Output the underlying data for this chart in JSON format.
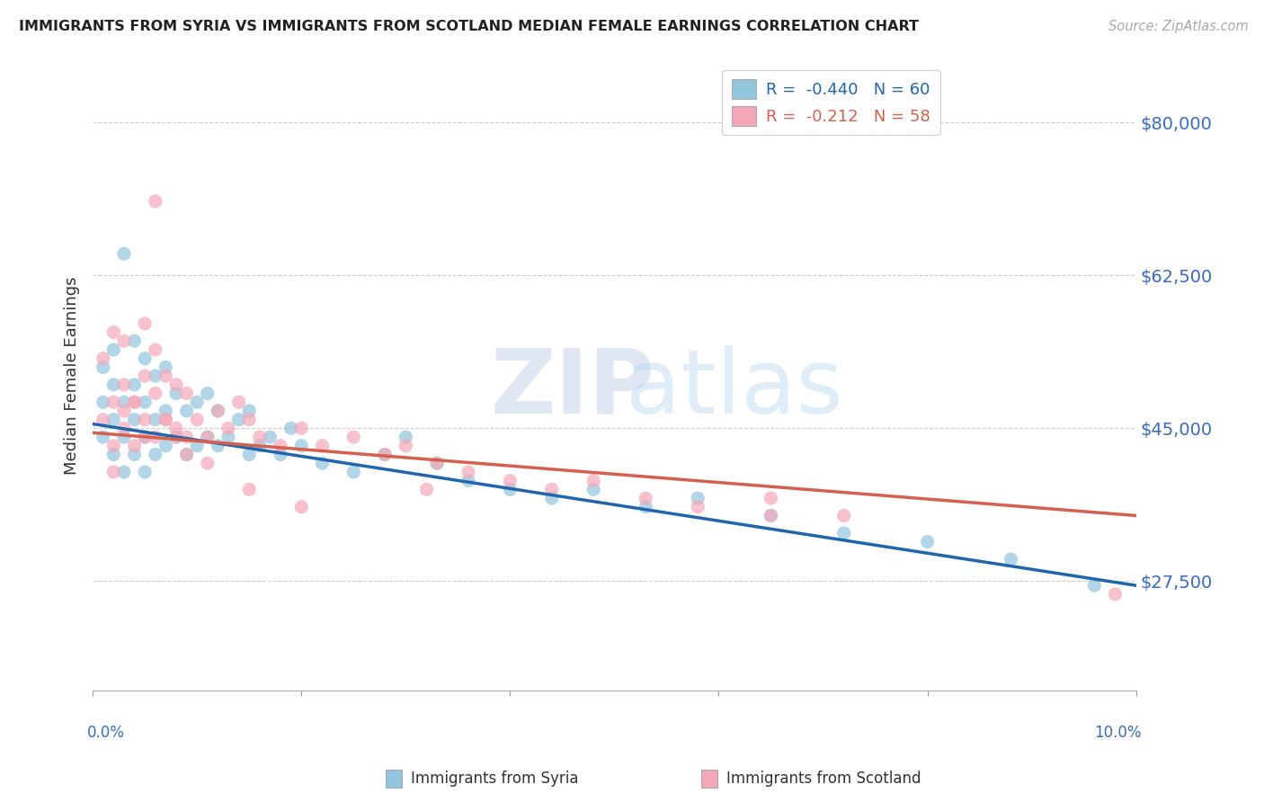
{
  "title": "IMMIGRANTS FROM SYRIA VS IMMIGRANTS FROM SCOTLAND MEDIAN FEMALE EARNINGS CORRELATION CHART",
  "source": "Source: ZipAtlas.com",
  "ylabel": "Median Female Earnings",
  "yticks": [
    27500,
    45000,
    62500,
    80000
  ],
  "ytick_labels": [
    "$27,500",
    "$45,000",
    "$62,500",
    "$80,000"
  ],
  "xlim": [
    0.0,
    0.1
  ],
  "ylim": [
    15000,
    87000
  ],
  "legend_syria": "R =  -0.440   N = 60",
  "legend_scotland": "R =  -0.212   N = 58",
  "legend_label_syria": "Immigrants from Syria",
  "legend_label_scotland": "Immigrants from Scotland",
  "color_syria": "#92c5de",
  "color_scotland": "#f4a7b9",
  "line_color_syria": "#2166ac",
  "line_color_scotland": "#d6604d",
  "watermark_zip": "ZIP",
  "watermark_atlas": "atlas",
  "syria_x": [
    0.001,
    0.001,
    0.001,
    0.002,
    0.002,
    0.002,
    0.002,
    0.003,
    0.003,
    0.003,
    0.003,
    0.004,
    0.004,
    0.004,
    0.004,
    0.005,
    0.005,
    0.005,
    0.005,
    0.006,
    0.006,
    0.006,
    0.007,
    0.007,
    0.007,
    0.008,
    0.008,
    0.009,
    0.009,
    0.01,
    0.01,
    0.011,
    0.011,
    0.012,
    0.012,
    0.013,
    0.014,
    0.015,
    0.015,
    0.016,
    0.017,
    0.018,
    0.019,
    0.02,
    0.022,
    0.025,
    0.028,
    0.03,
    0.033,
    0.036,
    0.04,
    0.044,
    0.048,
    0.053,
    0.058,
    0.065,
    0.072,
    0.08,
    0.088,
    0.096
  ],
  "syria_y": [
    44000,
    48000,
    52000,
    42000,
    46000,
    50000,
    54000,
    40000,
    44000,
    48000,
    65000,
    42000,
    46000,
    50000,
    55000,
    40000,
    44000,
    48000,
    53000,
    42000,
    46000,
    51000,
    43000,
    47000,
    52000,
    44000,
    49000,
    42000,
    47000,
    43000,
    48000,
    44000,
    49000,
    43000,
    47000,
    44000,
    46000,
    42000,
    47000,
    43000,
    44000,
    42000,
    45000,
    43000,
    41000,
    40000,
    42000,
    44000,
    41000,
    39000,
    38000,
    37000,
    38000,
    36000,
    37000,
    35000,
    33000,
    32000,
    30000,
    27000
  ],
  "scotland_x": [
    0.001,
    0.001,
    0.002,
    0.002,
    0.002,
    0.003,
    0.003,
    0.003,
    0.004,
    0.004,
    0.005,
    0.005,
    0.005,
    0.006,
    0.006,
    0.006,
    0.007,
    0.007,
    0.008,
    0.008,
    0.009,
    0.009,
    0.01,
    0.011,
    0.012,
    0.013,
    0.014,
    0.015,
    0.016,
    0.018,
    0.02,
    0.022,
    0.025,
    0.028,
    0.03,
    0.033,
    0.036,
    0.04,
    0.044,
    0.048,
    0.053,
    0.058,
    0.065,
    0.072,
    0.002,
    0.003,
    0.004,
    0.005,
    0.006,
    0.007,
    0.008,
    0.009,
    0.011,
    0.015,
    0.02,
    0.032,
    0.065,
    0.098
  ],
  "scotland_y": [
    46000,
    53000,
    43000,
    48000,
    56000,
    45000,
    50000,
    55000,
    43000,
    48000,
    46000,
    51000,
    57000,
    44000,
    49000,
    54000,
    46000,
    51000,
    45000,
    50000,
    44000,
    49000,
    46000,
    44000,
    47000,
    45000,
    48000,
    46000,
    44000,
    43000,
    45000,
    43000,
    44000,
    42000,
    43000,
    41000,
    40000,
    39000,
    38000,
    39000,
    37000,
    36000,
    37000,
    35000,
    40000,
    47000,
    48000,
    44000,
    71000,
    46000,
    44000,
    42000,
    41000,
    38000,
    36000,
    38000,
    35000,
    26000
  ]
}
